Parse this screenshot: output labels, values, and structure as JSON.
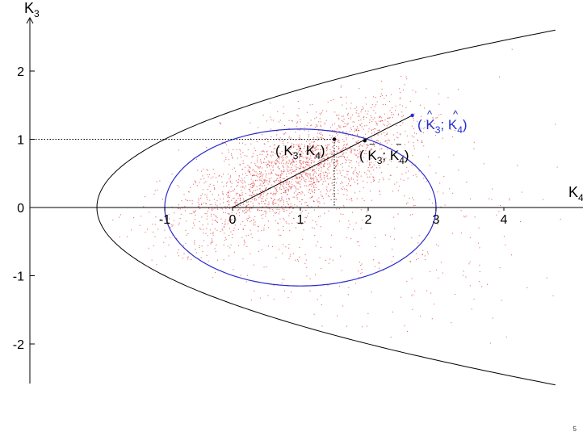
{
  "slide_number": "5",
  "chart_data": {
    "type": "scatter",
    "title": "",
    "xlabel": "K4",
    "ylabel": "K3",
    "xlim": [
      -3.5,
      5.0
    ],
    "ylim": [
      -2.6,
      2.7
    ],
    "x_ticks": [
      -1,
      0,
      1,
      2,
      3,
      4
    ],
    "y_ticks": [
      -2,
      -1,
      0,
      1,
      2
    ],
    "x_tick_labels": [
      "-1",
      "0",
      "1",
      "2",
      "3",
      "4"
    ],
    "y_tick_labels": [
      "-2",
      "-1",
      "0",
      "1",
      "2"
    ],
    "axis_labels": {
      "x": {
        "main": "K",
        "sub": "4"
      },
      "y": {
        "main": "K",
        "sub": "3"
      }
    },
    "grid": false,
    "colors": {
      "boundary": "#000000",
      "ellipse": "#2a2acc",
      "points": "#e03c3c",
      "highlight": "#1f2fd6"
    },
    "boundary_parabola": {
      "description": "K4 = -2 + K3^2",
      "vertex": [
        -2,
        0
      ],
      "k3_range": [
        -2.6,
        2.6
      ]
    },
    "ellipse": {
      "center": [
        1,
        0
      ],
      "x_semiaxis": 2,
      "y_semiaxis": 1.15
    },
    "sample_points": {
      "count": 2600,
      "centroid": [
        1.0,
        1.05
      ],
      "note": "dense red scatter cloud, mostly between K3 = 0 and 2"
    },
    "estimator_line": {
      "from": [
        0,
        0
      ],
      "to": [
        2.65,
        1.35
      ]
    },
    "annotations": [
      {
        "id": "sample",
        "parts": [
          "( K",
          "3",
          "; K",
          "4",
          ")"
        ],
        "point": [
          1.5,
          1.0
        ]
      },
      {
        "id": "tilde",
        "parts": [
          "( K",
          "3",
          "; K",
          "4",
          ")"
        ],
        "accent": "~",
        "point": [
          1.95,
          0.98
        ]
      },
      {
        "id": "hat",
        "parts": [
          "( K",
          "3",
          "; K",
          "4",
          ")"
        ],
        "accent": "^",
        "point": [
          2.65,
          1.35
        ]
      }
    ],
    "dotted_guides": [
      {
        "from": [
          -3.5,
          1.0
        ],
        "to": [
          1.5,
          1.0
        ]
      },
      {
        "from": [
          1.5,
          1.0
        ],
        "to": [
          1.5,
          0
        ]
      }
    ]
  }
}
